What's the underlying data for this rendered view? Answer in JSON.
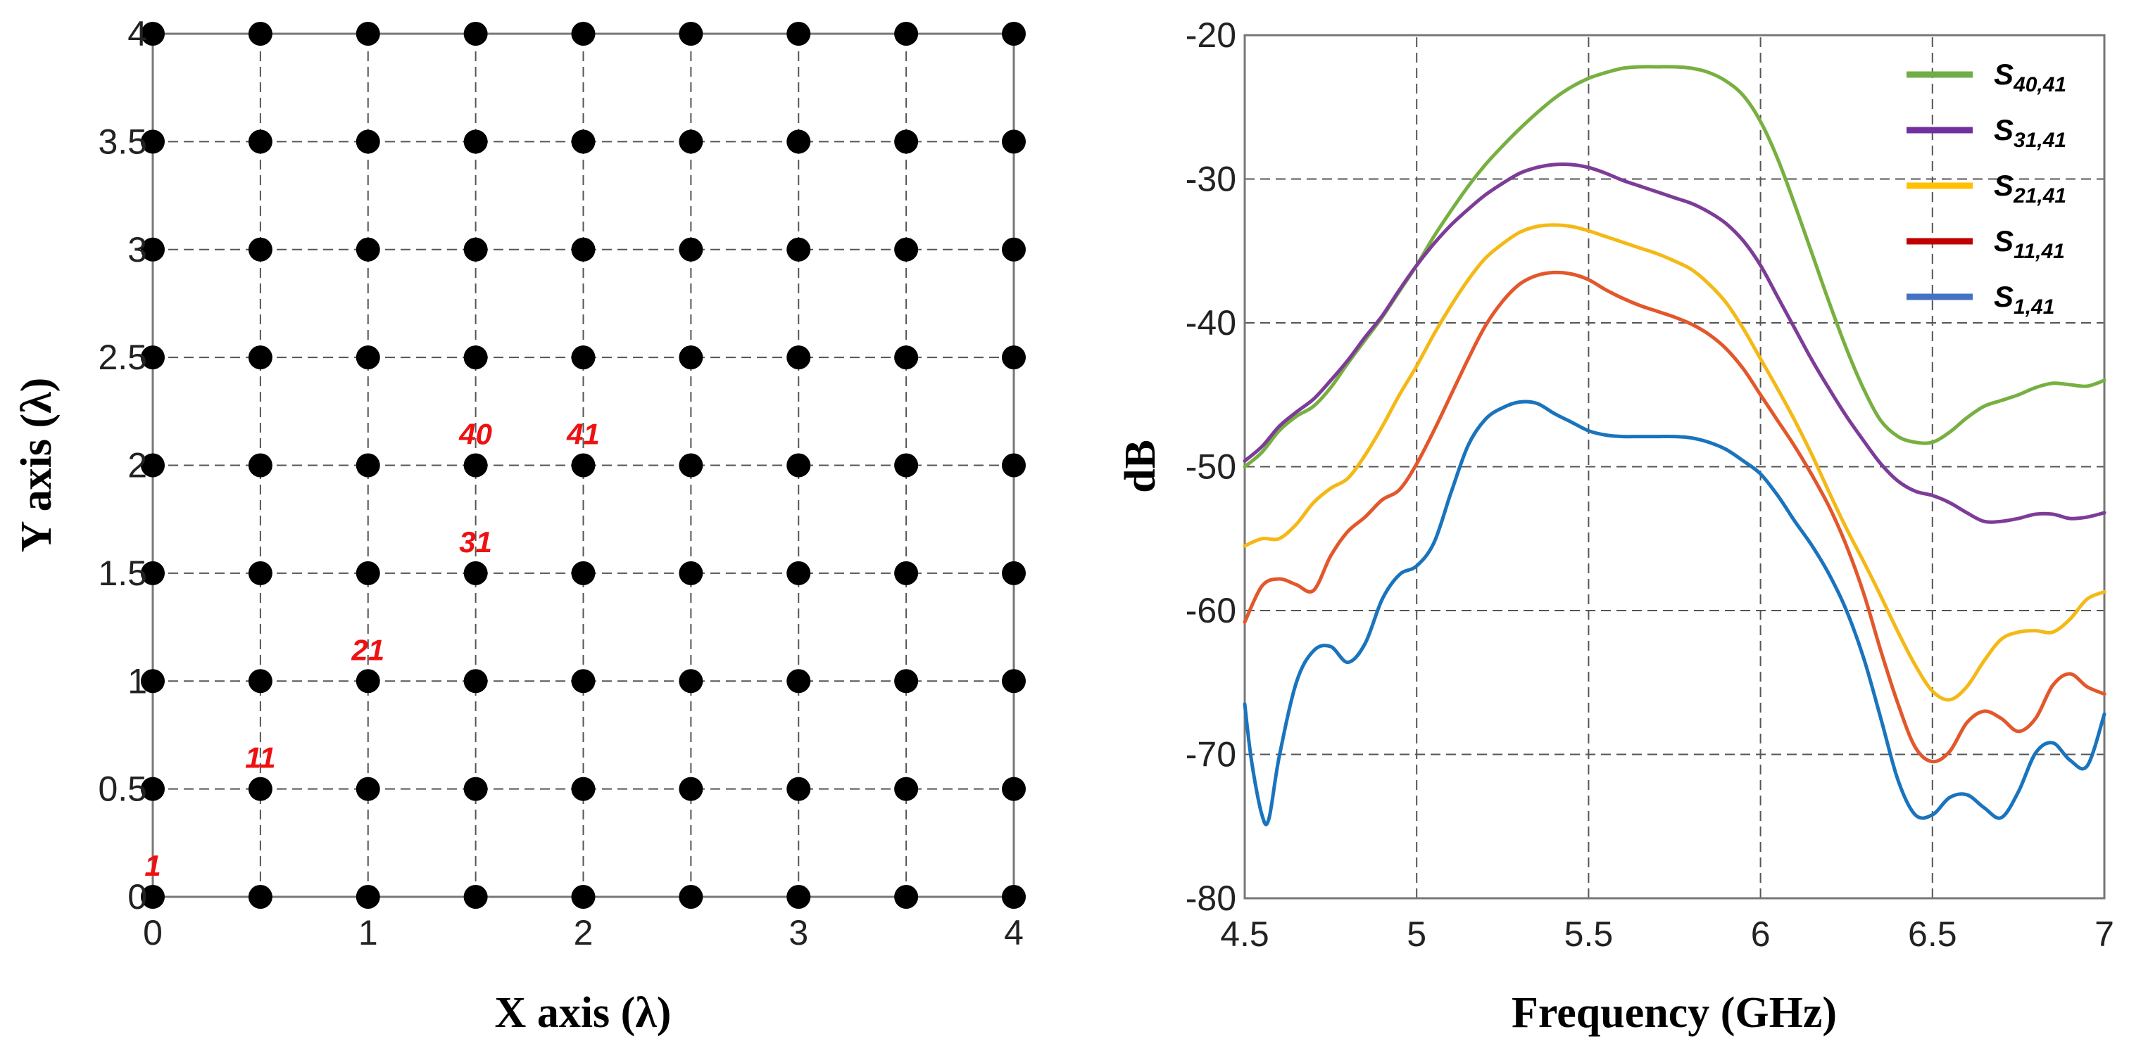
{
  "chart_data": [
    {
      "type": "scatter",
      "title": "",
      "xlabel": "X axis (λ)",
      "ylabel": "Y axis (λ)",
      "xlim": [
        0,
        4
      ],
      "ylim": [
        0,
        4
      ],
      "grid": true,
      "x_ticks": [
        0,
        1,
        2,
        3,
        4
      ],
      "x_tick_labels": [
        "0",
        "1",
        "2",
        "3",
        "4"
      ],
      "y_ticks": [
        0,
        0.5,
        1,
        1.5,
        2,
        2.5,
        3,
        3.5,
        4
      ],
      "y_tick_labels": [
        "0",
        "0.5",
        "1",
        "1.5",
        "2",
        "2.5",
        "3",
        "3.5",
        "4"
      ],
      "grid_x": [
        0,
        0.5,
        1,
        1.5,
        2,
        2.5,
        3,
        3.5,
        4
      ],
      "grid_y": [
        0,
        0.5,
        1,
        1.5,
        2,
        2.5,
        3,
        3.5,
        4
      ],
      "point_color": "#000000",
      "annotation_color": "#ee1111",
      "annotations": [
        {
          "text": "1",
          "x": 0,
          "y": 0
        },
        {
          "text": "11",
          "x": 0.5,
          "y": 0.5
        },
        {
          "text": "21",
          "x": 1,
          "y": 1
        },
        {
          "text": "31",
          "x": 1.5,
          "y": 1.5
        },
        {
          "text": "40",
          "x": 1.5,
          "y": 2
        },
        {
          "text": "41",
          "x": 2,
          "y": 2
        }
      ]
    },
    {
      "type": "line",
      "title": "",
      "xlabel": "Frequency (GHz)",
      "ylabel": "dB",
      "xlim": [
        4.5,
        7
      ],
      "ylim": [
        -80,
        -20
      ],
      "grid": true,
      "x_ticks": [
        4.5,
        5,
        5.5,
        6,
        6.5,
        7
      ],
      "x_tick_labels": [
        "4.5",
        "5",
        "5.5",
        "6",
        "6.5",
        "7"
      ],
      "y_ticks": [
        -80,
        -70,
        -60,
        -50,
        -40,
        -30,
        -20
      ],
      "y_tick_labels": [
        "-80",
        "-70",
        "-60",
        "-50",
        "-40",
        "-30",
        "-20"
      ],
      "legend_position": "top-right",
      "series": [
        {
          "name": "S40,41",
          "label_main": "S",
          "label_sub": "40,41",
          "color": "#77b041",
          "legend_color": "#70ad47",
          "x": [
            4.5,
            4.55,
            4.6,
            4.65,
            4.7,
            4.75,
            4.8,
            4.85,
            4.9,
            4.95,
            5.0,
            5.05,
            5.1,
            5.15,
            5.2,
            5.25,
            5.3,
            5.35,
            5.4,
            5.45,
            5.5,
            5.55,
            5.6,
            5.65,
            5.7,
            5.75,
            5.8,
            5.85,
            5.9,
            5.95,
            6.0,
            6.05,
            6.1,
            6.15,
            6.2,
            6.25,
            6.3,
            6.35,
            6.4,
            6.45,
            6.5,
            6.55,
            6.6,
            6.65,
            6.7,
            6.75,
            6.8,
            6.85,
            6.9,
            6.95,
            7.0
          ],
          "values": [
            -50,
            -49,
            -47.5,
            -46.5,
            -45.8,
            -44.5,
            -42.8,
            -41.2,
            -39.6,
            -37.8,
            -36,
            -34,
            -32.2,
            -30.5,
            -29,
            -27.7,
            -26.5,
            -25.4,
            -24.4,
            -23.6,
            -23,
            -22.6,
            -22.3,
            -22.2,
            -22.2,
            -22.2,
            -22.3,
            -22.6,
            -23.2,
            -24.2,
            -26,
            -28.6,
            -31.8,
            -35.2,
            -38.6,
            -41.8,
            -44.6,
            -46.8,
            -47.9,
            -48.3,
            -48.3,
            -47.6,
            -46.6,
            -45.8,
            -45.4,
            -45,
            -44.5,
            -44.2,
            -44.3,
            -44.4,
            -44
          ]
        },
        {
          "name": "S31,41",
          "label_main": "S",
          "label_sub": "31,41",
          "color": "#7d3c98",
          "legend_color": "#7030a0",
          "x": [
            4.5,
            4.55,
            4.6,
            4.65,
            4.7,
            4.75,
            4.8,
            4.85,
            4.9,
            4.95,
            5.0,
            5.05,
            5.1,
            5.15,
            5.2,
            5.25,
            5.3,
            5.35,
            5.4,
            5.45,
            5.5,
            5.55,
            5.6,
            5.65,
            5.7,
            5.75,
            5.8,
            5.85,
            5.9,
            5.95,
            6.0,
            6.05,
            6.1,
            6.15,
            6.2,
            6.25,
            6.3,
            6.35,
            6.4,
            6.45,
            6.5,
            6.55,
            6.6,
            6.65,
            6.7,
            6.75,
            6.8,
            6.85,
            6.9,
            6.95,
            7.0
          ],
          "values": [
            -49.6,
            -48.6,
            -47.2,
            -46.2,
            -45.3,
            -44,
            -42.6,
            -41,
            -39.5,
            -37.7,
            -36,
            -34.5,
            -33.2,
            -32.1,
            -31.1,
            -30.3,
            -29.6,
            -29.2,
            -29,
            -29,
            -29.2,
            -29.6,
            -30.1,
            -30.5,
            -30.9,
            -31.3,
            -31.7,
            -32.3,
            -33.1,
            -34.3,
            -36,
            -38.2,
            -40.4,
            -42.6,
            -44.6,
            -46.5,
            -48.2,
            -49.8,
            -51,
            -51.7,
            -52,
            -52.5,
            -53.2,
            -53.8,
            -53.8,
            -53.6,
            -53.3,
            -53.3,
            -53.6,
            -53.5,
            -53.2
          ]
        },
        {
          "name": "S21,41",
          "label_main": "S",
          "label_sub": "21,41",
          "color": "#f4b916",
          "legend_color": "#ffc000",
          "x": [
            4.5,
            4.55,
            4.6,
            4.65,
            4.7,
            4.75,
            4.8,
            4.85,
            4.9,
            4.95,
            5.0,
            5.05,
            5.1,
            5.15,
            5.2,
            5.25,
            5.3,
            5.35,
            5.4,
            5.45,
            5.5,
            5.55,
            5.6,
            5.65,
            5.7,
            5.75,
            5.8,
            5.85,
            5.9,
            5.95,
            6.0,
            6.05,
            6.1,
            6.15,
            6.2,
            6.25,
            6.3,
            6.35,
            6.4,
            6.45,
            6.5,
            6.55,
            6.6,
            6.65,
            6.7,
            6.75,
            6.8,
            6.85,
            6.9,
            6.95,
            7.0
          ],
          "values": [
            -55.5,
            -55,
            -55,
            -54,
            -52.5,
            -51.5,
            -50.8,
            -49.2,
            -47.2,
            -45,
            -43,
            -40.8,
            -38.8,
            -37,
            -35.5,
            -34.5,
            -33.7,
            -33.3,
            -33.2,
            -33.3,
            -33.6,
            -34,
            -34.4,
            -34.8,
            -35.2,
            -35.7,
            -36.3,
            -37.3,
            -38.6,
            -40.4,
            -42.5,
            -44.6,
            -46.8,
            -49.2,
            -51.8,
            -54.3,
            -56.6,
            -59,
            -61.5,
            -63.8,
            -65.6,
            -66.2,
            -65.3,
            -63.5,
            -62,
            -61.5,
            -61.4,
            -61.5,
            -60.6,
            -59.2,
            -58.7
          ]
        },
        {
          "name": "S11,41",
          "label_main": "S",
          "label_sub": "11,41",
          "color": "#e2572b",
          "legend_color": "#c00000",
          "x": [
            4.5,
            4.55,
            4.6,
            4.65,
            4.7,
            4.75,
            4.8,
            4.85,
            4.9,
            4.95,
            5.0,
            5.05,
            5.1,
            5.15,
            5.2,
            5.25,
            5.3,
            5.35,
            5.4,
            5.45,
            5.5,
            5.55,
            5.6,
            5.65,
            5.7,
            5.75,
            5.8,
            5.85,
            5.9,
            5.95,
            6.0,
            6.05,
            6.1,
            6.15,
            6.2,
            6.25,
            6.3,
            6.35,
            6.4,
            6.45,
            6.5,
            6.55,
            6.6,
            6.65,
            6.7,
            6.75,
            6.8,
            6.85,
            6.9,
            6.95,
            7.0
          ],
          "values": [
            -60.8,
            -58.3,
            -57.8,
            -58.2,
            -58.6,
            -56.2,
            -54.5,
            -53.5,
            -52.3,
            -51.6,
            -49.8,
            -47.5,
            -45,
            -42.5,
            -40.2,
            -38.5,
            -37.3,
            -36.7,
            -36.5,
            -36.6,
            -37,
            -37.7,
            -38.3,
            -38.8,
            -39.2,
            -39.6,
            -40.1,
            -40.8,
            -41.8,
            -43.2,
            -45,
            -46.8,
            -48.6,
            -50.6,
            -52.8,
            -55.5,
            -58.8,
            -62.8,
            -66.5,
            -69.5,
            -70.5,
            -69.8,
            -67.8,
            -67,
            -67.5,
            -68.4,
            -67.5,
            -65.2,
            -64.4,
            -65.3,
            -65.8
          ]
        },
        {
          "name": "S1,41",
          "label_main": "S",
          "label_sub": "1,41",
          "color": "#1a74bd",
          "legend_color": "#4472c4",
          "x": [
            4.5,
            4.52,
            4.55,
            4.57,
            4.6,
            4.65,
            4.7,
            4.75,
            4.8,
            4.85,
            4.9,
            4.95,
            5.0,
            5.05,
            5.1,
            5.15,
            5.2,
            5.25,
            5.3,
            5.35,
            5.4,
            5.45,
            5.5,
            5.55,
            5.6,
            5.65,
            5.7,
            5.75,
            5.8,
            5.85,
            5.9,
            5.95,
            6.0,
            6.05,
            6.1,
            6.15,
            6.2,
            6.25,
            6.3,
            6.35,
            6.4,
            6.45,
            6.5,
            6.55,
            6.6,
            6.65,
            6.7,
            6.75,
            6.8,
            6.85,
            6.9,
            6.95,
            7.0
          ],
          "values": [
            -66.5,
            -70.5,
            -74.2,
            -74.5,
            -70.2,
            -65,
            -62.8,
            -62.5,
            -63.6,
            -62.3,
            -59.2,
            -57.5,
            -56.9,
            -55.3,
            -51.8,
            -48.5,
            -46.7,
            -45.9,
            -45.5,
            -45.6,
            -46.3,
            -46.9,
            -47.5,
            -47.8,
            -47.9,
            -47.9,
            -47.9,
            -47.9,
            -48,
            -48.3,
            -48.8,
            -49.6,
            -50.5,
            -52,
            -53.8,
            -55.5,
            -57.5,
            -60,
            -63.3,
            -67.5,
            -71.8,
            -74.2,
            -74.2,
            -73,
            -72.8,
            -73.7,
            -74.4,
            -72.6,
            -69.9,
            -69.2,
            -70.4,
            -70.8,
            -67.2
          ]
        }
      ]
    }
  ]
}
